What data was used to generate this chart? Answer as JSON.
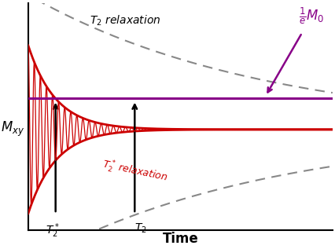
{
  "t_max": 10.0,
  "M0": 1.0,
  "T2": 3.5,
  "T2star": 0.9,
  "freq": 5.0,
  "purple_level": 0.368,
  "T2_time": 3.5,
  "T2star_time": 0.9,
  "bg_color": "#ffffff",
  "red_color": "#cc0000",
  "dashed_color": "#888888",
  "purple_color": "#880088",
  "arrow_color": "#000000",
  "xlabel": "Time",
  "ylabel": "$M_{xy}$",
  "T2_label": "$T_2$",
  "T2star_label": "$T_2^*$",
  "T2_relax_label": "$T_2$ relaxation",
  "T2star_relax_label": "$T_2^*$ relaxation",
  "M0_label_top": "$\\frac{1}{e}$",
  "M0_label_bot": "$M_0$",
  "figsize": [
    4.27,
    3.17
  ],
  "dpi": 100
}
